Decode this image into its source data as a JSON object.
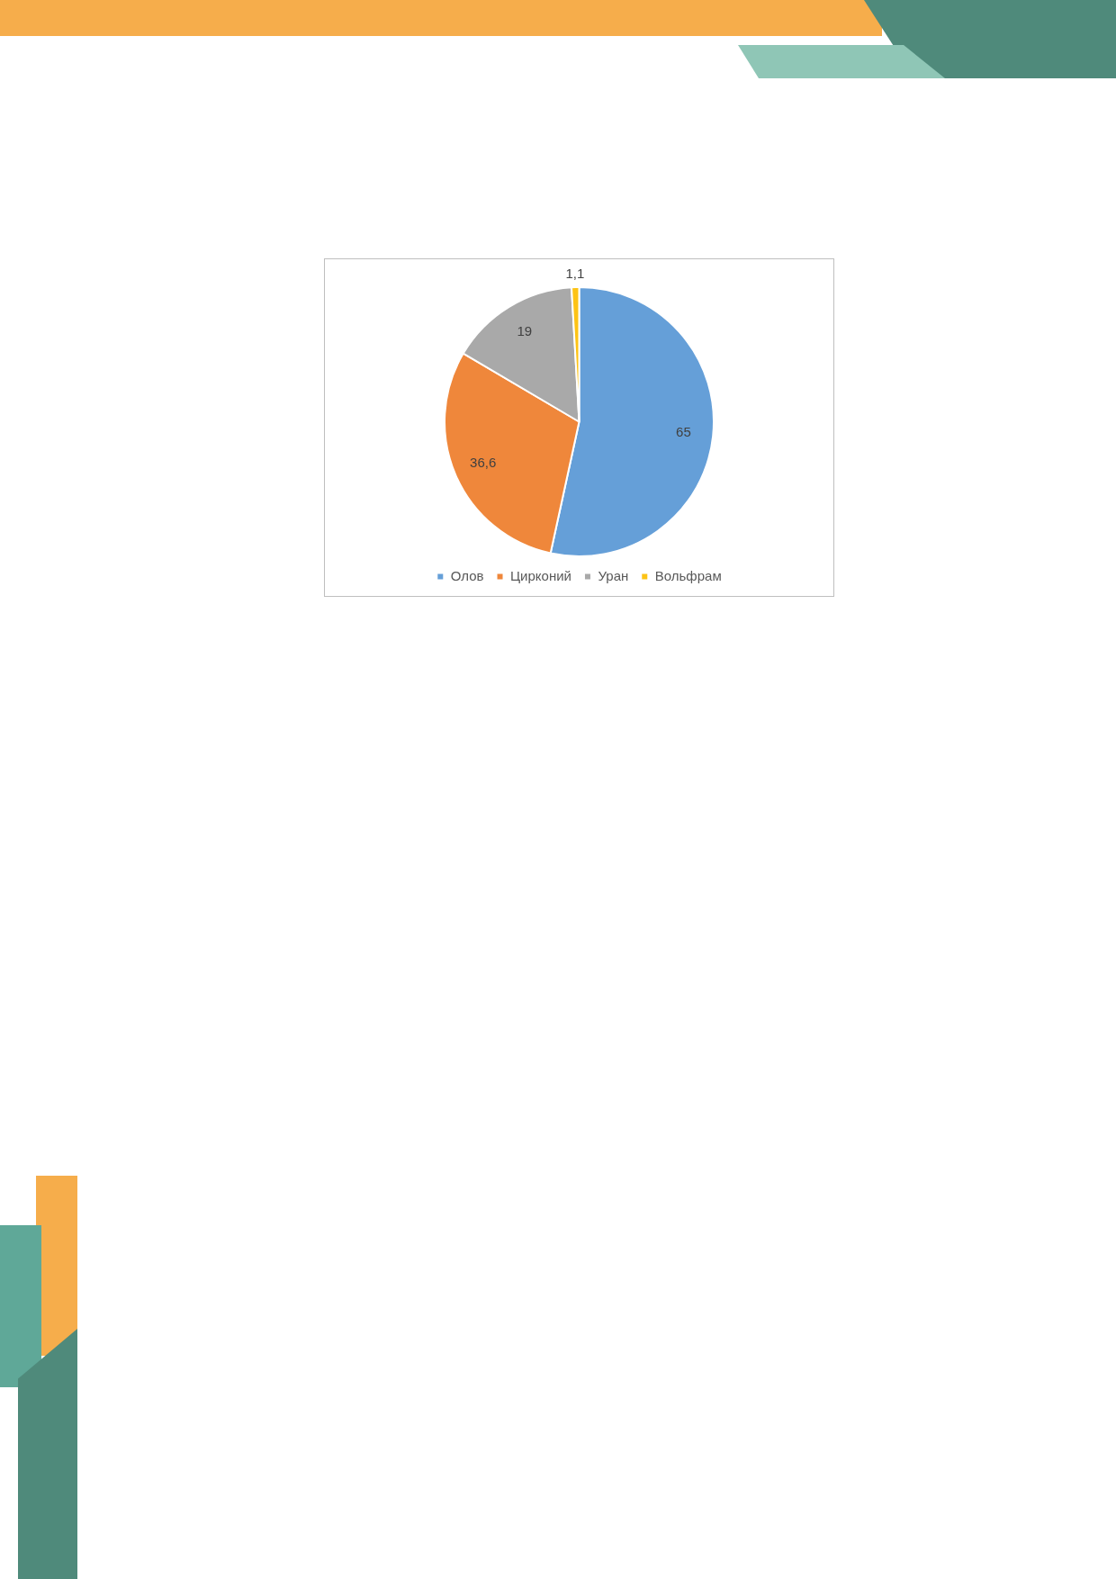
{
  "chart_data": {
    "type": "pie",
    "categories": [
      "Олов",
      "Цирконий",
      "Уран",
      "Вольфрам"
    ],
    "values": [
      65,
      36.6,
      19,
      1.1
    ],
    "colors": [
      "#659fd8",
      "#ef873b",
      "#a9a9a9",
      "#fdc315"
    ],
    "value_labels": [
      "65",
      "36,6",
      "19",
      "1,1"
    ],
    "legend": "bottom"
  }
}
